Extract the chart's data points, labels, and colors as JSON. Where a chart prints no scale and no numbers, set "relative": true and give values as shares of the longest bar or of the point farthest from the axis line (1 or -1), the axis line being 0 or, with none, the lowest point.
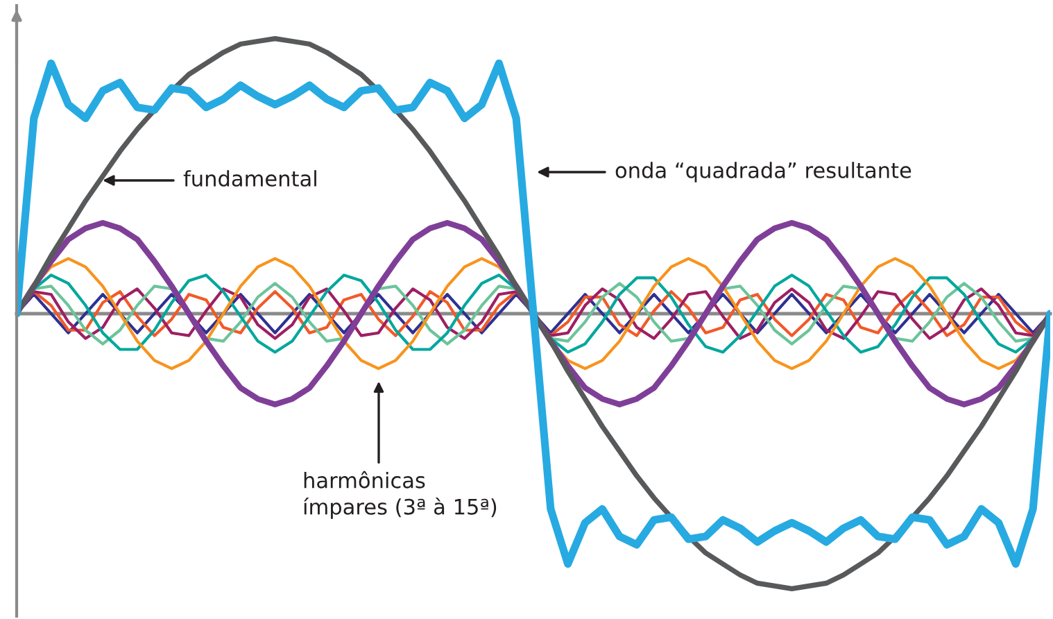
{
  "chart_data": {
    "type": "line",
    "relative": true,
    "categories": [
      null,
      null,
      null,
      null,
      null,
      null,
      null,
      null,
      null,
      null,
      null,
      null,
      null,
      null,
      null,
      null,
      null,
      null,
      null,
      null,
      null,
      null,
      null,
      null,
      null,
      null,
      null,
      null,
      null,
      null,
      null,
      null,
      null,
      null,
      null,
      null,
      null,
      null,
      null,
      null,
      null,
      null,
      null,
      null,
      null,
      null,
      null,
      null,
      null,
      null,
      null,
      null,
      null,
      null,
      null,
      null,
      null,
      null,
      null,
      null,
      null
    ],
    "series": [
      {
        "color": "#2e3192",
        "values": [
          0,
          0.07,
          0,
          -0.07,
          0,
          0.07,
          0,
          -0.07,
          0,
          0.07,
          0,
          -0.07,
          0,
          0.07,
          0,
          -0.07,
          0,
          0.07,
          0,
          -0.07,
          0,
          0.07,
          0,
          -0.07,
          0,
          0.07,
          0,
          -0.07,
          0,
          0.07,
          0,
          -0.07,
          0,
          0.07,
          0,
          -0.07,
          0,
          0.07,
          0,
          -0.07,
          0,
          0.07,
          0,
          -0.07,
          0,
          0.07,
          0,
          -0.07,
          0,
          0.07,
          0,
          -0.07,
          0,
          0.07,
          0,
          -0.07,
          0,
          0.07,
          0,
          -0.07,
          0
        ]
      },
      {
        "color": "#f15a29",
        "values": [
          0,
          0.08,
          0.03,
          -0.06,
          -0.06,
          0.04,
          0.08,
          -0.01,
          -0.08,
          -0.02,
          0.07,
          0.05,
          -0.05,
          -0.07,
          0.02,
          0.08,
          0.02,
          -0.07,
          -0.05,
          0.05,
          0.07,
          -0.02,
          -0.08,
          -0.01,
          0.08,
          0.04,
          -0.06,
          -0.06,
          0.03,
          0.08,
          0,
          -0.08,
          -0.03,
          0.06,
          0.06,
          -0.04,
          -0.08,
          0.01,
          0.08,
          0.02,
          -0.07,
          -0.05,
          0.05,
          0.07,
          -0.02,
          -0.08,
          -0.02,
          0.07,
          0.05,
          -0.05,
          -0.07,
          0.02,
          0.08,
          0.01,
          -0.08,
          -0.04,
          0.06,
          0.06,
          -0.03,
          -0.08,
          0
        ]
      },
      {
        "color": "#9e1f63",
        "values": [
          0,
          0.08,
          0.07,
          -0.03,
          -0.09,
          -0.05,
          0.05,
          0.09,
          0.02,
          -0.07,
          -0.08,
          0.01,
          0.09,
          0.06,
          -0.04,
          -0.09,
          -0.04,
          0.06,
          0.09,
          0.01,
          -0.08,
          -0.07,
          0.02,
          0.09,
          0.05,
          -0.05,
          -0.09,
          -0.03,
          0.07,
          0.08,
          0,
          -0.08,
          -0.07,
          0.03,
          0.09,
          0.05,
          -0.05,
          -0.09,
          -0.02,
          0.07,
          0.08,
          -0.01,
          -0.09,
          -0.06,
          0.04,
          0.09,
          0.04,
          -0.06,
          -0.09,
          -0.01,
          0.08,
          0.07,
          -0.02,
          -0.09,
          -0.05,
          0.05,
          0.09,
          0.03,
          -0.07,
          -0.08,
          0
        ]
      },
      {
        "color": "#6cc49a",
        "values": [
          0,
          0.09,
          0.1,
          0.03,
          -0.06,
          -0.11,
          -0.06,
          0.03,
          0.1,
          0.09,
          0,
          -0.09,
          -0.1,
          -0.03,
          0.06,
          0.11,
          0.06,
          -0.03,
          -0.1,
          -0.09,
          0,
          0.09,
          0.1,
          0.03,
          -0.06,
          -0.11,
          -0.06,
          0.03,
          0.1,
          0.09,
          0,
          -0.09,
          -0.1,
          -0.03,
          0.06,
          0.11,
          0.06,
          -0.03,
          -0.1,
          -0.09,
          0,
          0.09,
          0.1,
          0.03,
          -0.06,
          -0.11,
          -0.06,
          0.03,
          0.1,
          0.09,
          0,
          -0.09,
          -0.1,
          -0.03,
          0.06,
          0.11,
          0.06,
          -0.03,
          -0.1,
          -0.09,
          0
        ]
      },
      {
        "color": "#00a79d",
        "values": [
          0,
          0.09,
          0.14,
          0.11,
          0.03,
          -0.07,
          -0.13,
          -0.13,
          -0.06,
          0.04,
          0.12,
          0.14,
          0.08,
          -0.01,
          -0.1,
          -0.14,
          -0.1,
          -0.01,
          0.08,
          0.14,
          0.12,
          0.04,
          -0.06,
          -0.13,
          -0.13,
          -0.07,
          0.03,
          0.11,
          0.14,
          0.09,
          0,
          -0.09,
          -0.14,
          -0.11,
          -0.03,
          0.07,
          0.13,
          0.13,
          0.06,
          -0.04,
          -0.12,
          -0.14,
          -0.08,
          0.01,
          0.1,
          0.14,
          0.1,
          0.01,
          -0.08,
          -0.14,
          -0.12,
          -0.04,
          0.06,
          0.13,
          0.13,
          0.07,
          -0.03,
          -0.11,
          -0.14,
          -0.09,
          0
        ]
      },
      {
        "color": "#f7941d",
        "values": [
          0,
          0.1,
          0.17,
          0.2,
          0.17,
          0.1,
          0,
          -0.1,
          -0.17,
          -0.2,
          -0.17,
          -0.1,
          0,
          0.1,
          0.17,
          0.2,
          0.17,
          0.1,
          0,
          -0.1,
          -0.17,
          -0.2,
          -0.17,
          -0.1,
          0,
          0.1,
          0.17,
          0.2,
          0.17,
          0.1,
          0,
          -0.1,
          -0.17,
          -0.2,
          -0.17,
          -0.1,
          0,
          0.1,
          0.17,
          0.2,
          0.17,
          0.1,
          0,
          -0.1,
          -0.17,
          -0.2,
          -0.17,
          -0.1,
          0,
          0.1,
          0.17,
          0.2,
          0.17,
          0.1,
          0,
          -0.1,
          -0.17,
          -0.2,
          -0.17,
          -0.1,
          0
        ]
      },
      {
        "color": "#7f3f98",
        "values": [
          0,
          0.1,
          0.19,
          0.27,
          0.31,
          0.33,
          0.31,
          0.27,
          0.19,
          0.1,
          0,
          -0.1,
          -0.19,
          -0.27,
          -0.31,
          -0.33,
          -0.31,
          -0.27,
          -0.19,
          -0.1,
          0,
          0.1,
          0.19,
          0.27,
          0.31,
          0.33,
          0.31,
          0.27,
          0.19,
          0.1,
          0,
          -0.1,
          -0.19,
          -0.27,
          -0.31,
          -0.33,
          -0.31,
          -0.27,
          -0.19,
          -0.1,
          0,
          0.1,
          0.19,
          0.27,
          0.31,
          0.33,
          0.31,
          0.27,
          0.19,
          0.1,
          0,
          -0.1,
          -0.19,
          -0.27,
          -0.31,
          -0.33,
          -0.31,
          -0.27,
          -0.19,
          -0.1,
          0
        ]
      },
      {
        "color": "#58595b",
        "values": [
          0,
          0.1,
          0.21,
          0.31,
          0.41,
          0.5,
          0.59,
          0.67,
          0.74,
          0.81,
          0.87,
          0.91,
          0.95,
          0.98,
          0.99,
          1,
          0.99,
          0.98,
          0.95,
          0.91,
          0.87,
          0.81,
          0.74,
          0.67,
          0.59,
          0.5,
          0.41,
          0.31,
          0.21,
          0.1,
          0,
          -0.1,
          -0.21,
          -0.31,
          -0.41,
          -0.5,
          -0.59,
          -0.67,
          -0.74,
          -0.81,
          -0.87,
          -0.91,
          -0.95,
          -0.98,
          -0.99,
          -1,
          -0.99,
          -0.98,
          -0.95,
          -0.91,
          -0.87,
          -0.81,
          -0.74,
          -0.67,
          -0.59,
          -0.5,
          -0.41,
          -0.31,
          -0.21,
          -0.1,
          0
        ]
      },
      {
        "color": "#27aae1",
        "values": [
          0,
          0.71,
          0.91,
          0.76,
          0.71,
          0.81,
          0.84,
          0.75,
          0.74,
          0.82,
          0.81,
          0.75,
          0.78,
          0.83,
          0.79,
          0.76,
          0.79,
          0.83,
          0.78,
          0.75,
          0.81,
          0.82,
          0.74,
          0.75,
          0.84,
          0.81,
          0.71,
          0.76,
          0.91,
          0.71,
          0,
          -0.71,
          -0.91,
          -0.76,
          -0.71,
          -0.81,
          -0.84,
          -0.75,
          -0.74,
          -0.82,
          -0.81,
          -0.75,
          -0.78,
          -0.83,
          -0.79,
          -0.76,
          -0.79,
          -0.83,
          -0.78,
          -0.75,
          -0.81,
          -0.82,
          -0.74,
          -0.75,
          -0.84,
          -0.81,
          -0.71,
          -0.76,
          -0.91,
          -0.71,
          0
        ]
      }
    ],
    "annotations": [
      "fundamental",
      "onda “quadrada” resultante",
      "harmônicas\nímpares (3ª à 15ª)"
    ]
  }
}
